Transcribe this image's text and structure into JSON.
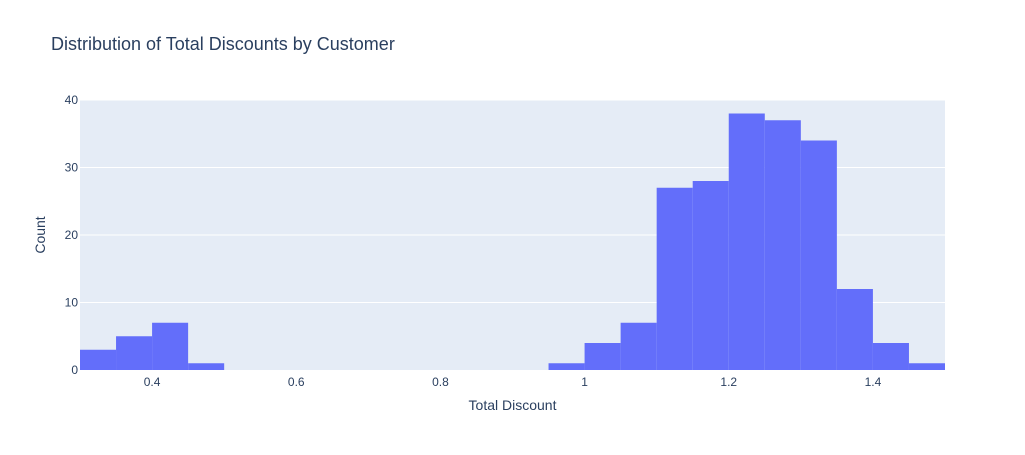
{
  "chart_data": {
    "type": "bar",
    "title": "Distribution of Total Discounts by Customer",
    "xlabel": "Total Discount",
    "ylabel": "Count",
    "xlim": [
      0.3,
      1.5
    ],
    "ylim": [
      0,
      40
    ],
    "x_ticks": [
      0.4,
      0.6,
      0.8,
      1,
      1.2,
      1.4
    ],
    "x_tick_labels": [
      "0.4",
      "0.6",
      "0.8",
      "1",
      "1.2",
      "1.4"
    ],
    "y_ticks": [
      0,
      10,
      20,
      30,
      40
    ],
    "y_tick_labels": [
      "0",
      "10",
      "20",
      "30",
      "40"
    ],
    "bin_width": 0.05,
    "bins": [
      {
        "start": 0.3,
        "count": 3
      },
      {
        "start": 0.35,
        "count": 5
      },
      {
        "start": 0.4,
        "count": 7
      },
      {
        "start": 0.45,
        "count": 1
      },
      {
        "start": 0.95,
        "count": 1
      },
      {
        "start": 1.0,
        "count": 4
      },
      {
        "start": 1.05,
        "count": 7
      },
      {
        "start": 1.1,
        "count": 27
      },
      {
        "start": 1.15,
        "count": 28
      },
      {
        "start": 1.2,
        "count": 38
      },
      {
        "start": 1.25,
        "count": 37
      },
      {
        "start": 1.3,
        "count": 34
      },
      {
        "start": 1.35,
        "count": 12
      },
      {
        "start": 1.4,
        "count": 4
      },
      {
        "start": 1.45,
        "count": 1
      }
    ],
    "grid": true,
    "colors": {
      "bar": "#636efa",
      "plot_bg": "#e5ecf6",
      "grid": "#ffffff",
      "text": "#2a3f5f"
    }
  }
}
